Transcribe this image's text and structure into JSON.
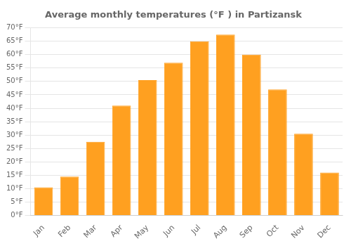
{
  "chart_data": {
    "type": "bar",
    "title": "Average monthly temperatures (°F ) in Partizansk",
    "categories": [
      "Jan",
      "Feb",
      "Mar",
      "Apr",
      "May",
      "Jun",
      "Jul",
      "Aug",
      "Sep",
      "Oct",
      "Nov",
      "Dec"
    ],
    "values": [
      10.5,
      14.5,
      27.5,
      41.0,
      50.5,
      57.0,
      65.0,
      67.5,
      60.0,
      47.0,
      30.5,
      16.0
    ],
    "color": "#FFA020",
    "ylim": [
      0,
      70
    ],
    "yticks": [
      {
        "value": 0,
        "label": "0°F"
      },
      {
        "value": 5,
        "label": "5°F"
      },
      {
        "value": 10,
        "label": "10°F"
      },
      {
        "value": 15,
        "label": "15°F"
      },
      {
        "value": 20,
        "label": "20°F"
      },
      {
        "value": 25,
        "label": "25°F"
      },
      {
        "value": 30,
        "label": "30°F"
      },
      {
        "value": 35,
        "label": "35°F"
      },
      {
        "value": 40,
        "label": "40°F"
      },
      {
        "value": 45,
        "label": "45°F"
      },
      {
        "value": 50,
        "label": "50°F"
      },
      {
        "value": 55,
        "label": "55°F"
      },
      {
        "value": 60,
        "label": "60°F"
      },
      {
        "value": 65,
        "label": "65°F"
      },
      {
        "value": 70,
        "label": "70°F"
      }
    ],
    "grid": true
  }
}
